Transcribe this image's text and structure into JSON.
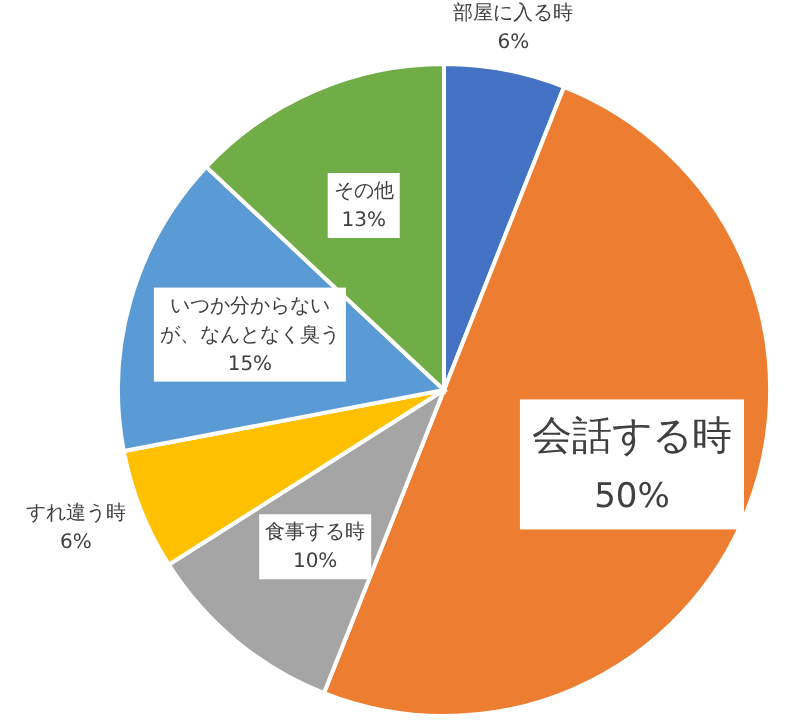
{
  "chart_data": {
    "type": "pie",
    "categories": [
      "部屋に入る時",
      "会話する時",
      "食事する時",
      "すれ違う時",
      "いつか分からないが、なんとなく臭う",
      "その他"
    ],
    "values": [
      6,
      50,
      10,
      6,
      15,
      13
    ],
    "value_labels": [
      "6%",
      "50%",
      "10%",
      "6%",
      "15%",
      "13%"
    ],
    "colors": [
      "#4472c4",
      "#ed7d31",
      "#a5a5a5",
      "#ffc000",
      "#5b9bd5",
      "#70ad47"
    ],
    "legend": false
  }
}
